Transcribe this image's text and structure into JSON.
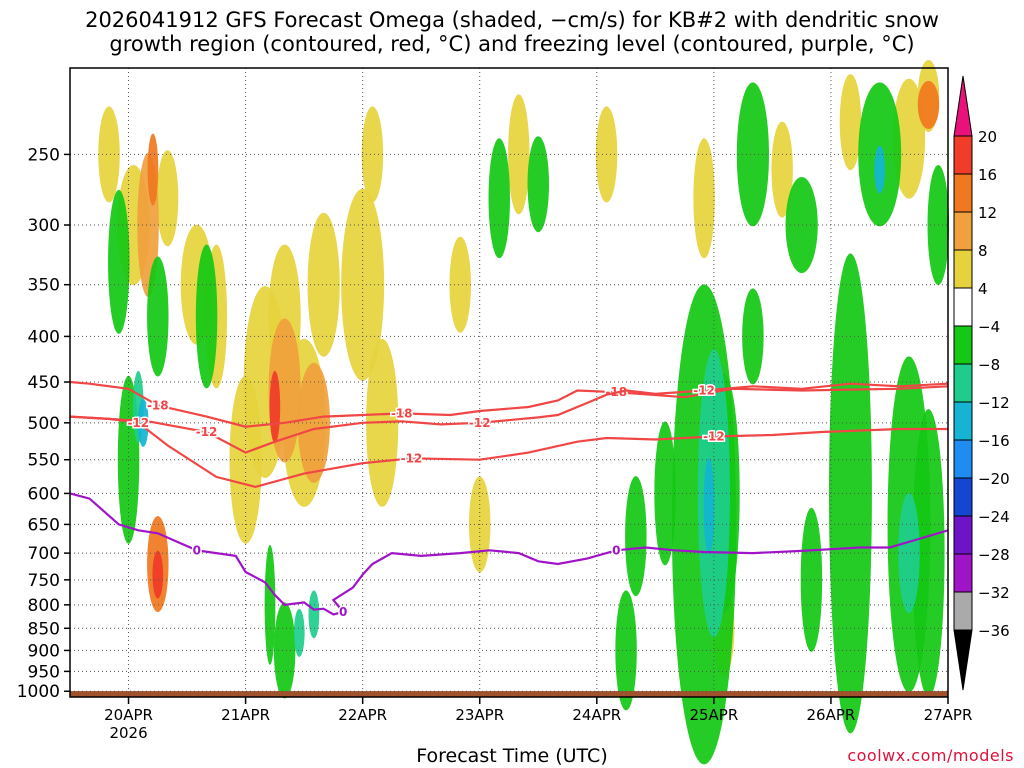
{
  "title": {
    "line1": "2026041912 GFS Forecast Omega (shaded, −cm/s) for KB#2 with dendritic snow",
    "line2": "growth region (contoured, red, °C) and freezing level (contoured, purple, °C)"
  },
  "credit": "coolwx.com/models",
  "chart_data": {
    "type": "heatmap",
    "xlabel": "Forecast Time (UTC)",
    "ylabel": "",
    "x_ticks": [
      "20APR",
      "21APR",
      "22APR",
      "23APR",
      "24APR",
      "25APR",
      "26APR",
      "27APR"
    ],
    "x_tick_hours": [
      12,
      36,
      60,
      84,
      108,
      132,
      156,
      180
    ],
    "x_year_label": "2026",
    "x_range_hours": [
      0,
      180
    ],
    "y_ticks": [
      250,
      300,
      350,
      400,
      450,
      500,
      550,
      600,
      650,
      700,
      750,
      800,
      850,
      900,
      950,
      1000
    ],
    "y_range_hpa": [
      200,
      1015
    ],
    "surface_pressure_hpa": 1010,
    "colorbar": {
      "tick_labels": [
        "20",
        "16",
        "12",
        "8",
        "4",
        "−4",
        "−8",
        "−12",
        "−16",
        "−20",
        "−24",
        "−28",
        "−32",
        "−36"
      ],
      "colors": [
        "#e8127a",
        "#f03c28",
        "#f0781e",
        "#f0a03c",
        "#e6d23c",
        "#ffffff",
        "#14c814",
        "#1ecd8c",
        "#14b4d2",
        "#1e8cf0",
        "#1446d2",
        "#6e14c8",
        "#a014c8",
        "#aaaaaa",
        "#000000"
      ]
    },
    "contours": [
      {
        "label": "-18",
        "color": "#f04646",
        "points": [
          [
            0,
            450
          ],
          [
            4,
            452
          ],
          [
            12,
            458
          ],
          [
            18,
            478
          ],
          [
            28,
            492
          ],
          [
            36,
            505
          ],
          [
            44,
            500
          ],
          [
            52,
            492
          ],
          [
            60,
            490
          ],
          [
            68,
            488
          ],
          [
            78,
            490
          ],
          [
            84,
            485
          ],
          [
            94,
            480
          ],
          [
            100,
            472
          ],
          [
            104,
            460
          ],
          [
            112,
            462
          ],
          [
            126,
            468
          ],
          [
            136,
            458
          ],
          [
            150,
            460
          ],
          [
            170,
            458
          ],
          [
            180,
            455
          ]
        ]
      },
      {
        "label": "-12",
        "color": "#f04646",
        "points": [
          [
            0,
            492
          ],
          [
            8,
            495
          ],
          [
            16,
            498
          ],
          [
            28,
            512
          ],
          [
            36,
            540
          ],
          [
            42,
            525
          ],
          [
            50,
            508
          ],
          [
            60,
            500
          ],
          [
            68,
            498
          ],
          [
            76,
            502
          ],
          [
            84,
            500
          ],
          [
            96,
            493
          ],
          [
            100,
            490
          ],
          [
            106,
            475
          ],
          [
            110,
            465
          ],
          [
            114,
            460
          ],
          [
            120,
            464
          ],
          [
            130,
            460
          ],
          [
            140,
            455
          ],
          [
            150,
            458
          ],
          [
            160,
            452
          ],
          [
            170,
            455
          ],
          [
            180,
            452
          ]
        ]
      },
      {
        "label": "-12",
        "color": "#f04646",
        "points": [
          [
            0,
            492
          ],
          [
            8,
            495
          ],
          [
            14,
            500
          ],
          [
            20,
            530
          ],
          [
            30,
            575
          ],
          [
            38,
            590
          ],
          [
            48,
            570
          ],
          [
            60,
            555
          ],
          [
            70,
            548
          ],
          [
            84,
            550
          ],
          [
            94,
            540
          ],
          [
            104,
            525
          ],
          [
            110,
            520
          ],
          [
            120,
            522
          ],
          [
            132,
            518
          ],
          [
            144,
            516
          ],
          [
            154,
            512
          ],
          [
            170,
            508
          ],
          [
            180,
            508
          ]
        ]
      },
      {
        "label": "0",
        "color": "#a014c8",
        "points": [
          [
            0,
            600
          ],
          [
            4,
            608
          ],
          [
            10,
            650
          ],
          [
            14,
            660
          ],
          [
            18,
            665
          ],
          [
            22,
            680
          ],
          [
            26,
            695
          ],
          [
            30,
            700
          ],
          [
            34,
            705
          ],
          [
            36,
            735
          ],
          [
            38,
            745
          ],
          [
            40,
            755
          ],
          [
            42,
            780
          ],
          [
            44,
            800
          ],
          [
            48,
            795
          ],
          [
            50,
            810
          ],
          [
            52,
            808
          ],
          [
            54,
            820
          ],
          [
            56,
            815
          ],
          [
            54,
            790
          ],
          [
            58,
            765
          ],
          [
            60,
            740
          ],
          [
            62,
            720
          ],
          [
            66,
            700
          ],
          [
            72,
            705
          ],
          [
            80,
            700
          ],
          [
            86,
            695
          ],
          [
            92,
            700
          ],
          [
            96,
            715
          ],
          [
            100,
            720
          ],
          [
            106,
            710
          ],
          [
            112,
            695
          ],
          [
            118,
            690
          ],
          [
            124,
            695
          ],
          [
            130,
            698
          ],
          [
            140,
            700
          ],
          [
            150,
            696
          ],
          [
            156,
            693
          ],
          [
            162,
            690
          ],
          [
            168,
            690
          ],
          [
            174,
            675
          ],
          [
            180,
            660
          ]
        ]
      }
    ]
  }
}
